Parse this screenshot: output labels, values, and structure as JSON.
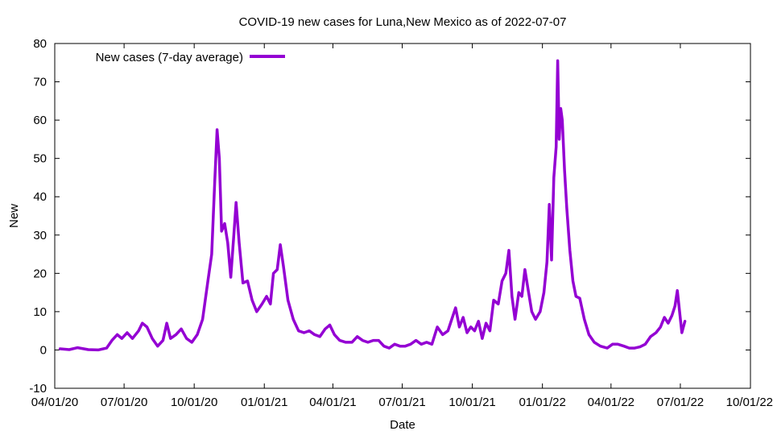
{
  "chart_data": {
    "type": "line",
    "title": "COVID-19 new cases for Luna,New Mexico as of 2022-07-07",
    "xlabel": "Date",
    "ylabel": "New",
    "xlim": [
      "2020-04-01",
      "2022-10-01"
    ],
    "ylim": [
      -10,
      80
    ],
    "grid": false,
    "legend_position": "top-left",
    "x_ticks": [
      "2020-04-01",
      "2020-07-01",
      "2020-10-01",
      "2021-01-01",
      "2021-04-01",
      "2021-07-01",
      "2021-10-01",
      "2022-01-01",
      "2022-04-01",
      "2022-07-01",
      "2022-10-01"
    ],
    "x_tick_labels": [
      "04/01/20",
      "07/01/20",
      "10/01/20",
      "01/01/21",
      "04/01/21",
      "07/01/21",
      "10/01/21",
      "01/01/22",
      "04/01/22",
      "07/01/22",
      "10/01/22"
    ],
    "y_ticks": [
      -10,
      0,
      10,
      20,
      30,
      40,
      50,
      60,
      70,
      80
    ],
    "y_tick_labels": [
      "-10",
      "0",
      "10",
      "20",
      "30",
      "40",
      "50",
      "60",
      "70",
      "80"
    ],
    "series": [
      {
        "name": "New cases (7-day average)",
        "color": "#9400d3",
        "points": [
          [
            "2020-04-08",
            0.3
          ],
          [
            "2020-04-20",
            0.1
          ],
          [
            "2020-05-01",
            0.6
          ],
          [
            "2020-05-15",
            0.1
          ],
          [
            "2020-05-28",
            0.0
          ],
          [
            "2020-06-08",
            0.5
          ],
          [
            "2020-06-15",
            2.5
          ],
          [
            "2020-06-22",
            4.0
          ],
          [
            "2020-06-28",
            3.0
          ],
          [
            "2020-07-05",
            4.5
          ],
          [
            "2020-07-12",
            3.0
          ],
          [
            "2020-07-20",
            5.0
          ],
          [
            "2020-07-25",
            7.0
          ],
          [
            "2020-07-31",
            6.0
          ],
          [
            "2020-08-07",
            3.0
          ],
          [
            "2020-08-14",
            1.0
          ],
          [
            "2020-08-21",
            2.5
          ],
          [
            "2020-08-26",
            7.0
          ],
          [
            "2020-08-31",
            3.0
          ],
          [
            "2020-09-07",
            4.0
          ],
          [
            "2020-09-14",
            5.5
          ],
          [
            "2020-09-21",
            3.0
          ],
          [
            "2020-09-28",
            2.0
          ],
          [
            "2020-10-05",
            4.0
          ],
          [
            "2020-10-12",
            8.0
          ],
          [
            "2020-10-19",
            18.0
          ],
          [
            "2020-10-24",
            25.0
          ],
          [
            "2020-10-28",
            44.0
          ],
          [
            "2020-10-31",
            57.5
          ],
          [
            "2020-11-03",
            50.0
          ],
          [
            "2020-11-06",
            31.0
          ],
          [
            "2020-11-10",
            33.0
          ],
          [
            "2020-11-14",
            28.0
          ],
          [
            "2020-11-18",
            19.0
          ],
          [
            "2020-11-22",
            30.0
          ],
          [
            "2020-11-25",
            38.5
          ],
          [
            "2020-11-29",
            28.0
          ],
          [
            "2020-12-04",
            17.5
          ],
          [
            "2020-12-10",
            18.0
          ],
          [
            "2020-12-16",
            13.0
          ],
          [
            "2020-12-22",
            10.0
          ],
          [
            "2020-12-29",
            12.0
          ],
          [
            "2021-01-04",
            14.0
          ],
          [
            "2021-01-09",
            12.0
          ],
          [
            "2021-01-13",
            20.0
          ],
          [
            "2021-01-18",
            21.0
          ],
          [
            "2021-01-22",
            27.5
          ],
          [
            "2021-01-26",
            22.0
          ],
          [
            "2021-02-01",
            13.0
          ],
          [
            "2021-02-08",
            8.0
          ],
          [
            "2021-02-15",
            5.0
          ],
          [
            "2021-02-22",
            4.5
          ],
          [
            "2021-03-01",
            5.0
          ],
          [
            "2021-03-08",
            4.0
          ],
          [
            "2021-03-15",
            3.5
          ],
          [
            "2021-03-22",
            5.5
          ],
          [
            "2021-03-28",
            6.5
          ],
          [
            "2021-04-03",
            4.0
          ],
          [
            "2021-04-10",
            2.5
          ],
          [
            "2021-04-18",
            2.0
          ],
          [
            "2021-04-26",
            2.0
          ],
          [
            "2021-05-03",
            3.5
          ],
          [
            "2021-05-10",
            2.5
          ],
          [
            "2021-05-17",
            2.0
          ],
          [
            "2021-05-24",
            2.5
          ],
          [
            "2021-05-31",
            2.5
          ],
          [
            "2021-06-07",
            1.0
          ],
          [
            "2021-06-14",
            0.5
          ],
          [
            "2021-06-21",
            1.5
          ],
          [
            "2021-06-28",
            1.0
          ],
          [
            "2021-07-05",
            1.0
          ],
          [
            "2021-07-12",
            1.5
          ],
          [
            "2021-07-19",
            2.5
          ],
          [
            "2021-07-26",
            1.5
          ],
          [
            "2021-08-02",
            2.0
          ],
          [
            "2021-08-09",
            1.5
          ],
          [
            "2021-08-16",
            6.0
          ],
          [
            "2021-08-23",
            4.0
          ],
          [
            "2021-08-30",
            5.0
          ],
          [
            "2021-09-04",
            8.0
          ],
          [
            "2021-09-09",
            11.0
          ],
          [
            "2021-09-14",
            6.0
          ],
          [
            "2021-09-19",
            8.5
          ],
          [
            "2021-09-24",
            4.5
          ],
          [
            "2021-09-29",
            6.0
          ],
          [
            "2021-10-04",
            5.0
          ],
          [
            "2021-10-09",
            7.5
          ],
          [
            "2021-10-14",
            3.0
          ],
          [
            "2021-10-19",
            7.0
          ],
          [
            "2021-10-24",
            5.0
          ],
          [
            "2021-10-29",
            13.0
          ],
          [
            "2021-11-04",
            12.0
          ],
          [
            "2021-11-09",
            18.0
          ],
          [
            "2021-11-14",
            20.0
          ],
          [
            "2021-11-18",
            26.0
          ],
          [
            "2021-11-22",
            14.0
          ],
          [
            "2021-11-26",
            8.0
          ],
          [
            "2021-12-01",
            15.0
          ],
          [
            "2021-12-05",
            14.0
          ],
          [
            "2021-12-09",
            21.0
          ],
          [
            "2021-12-13",
            16.0
          ],
          [
            "2021-12-18",
            10.0
          ],
          [
            "2021-12-23",
            8.0
          ],
          [
            "2021-12-29",
            10.0
          ],
          [
            "2022-01-03",
            15.0
          ],
          [
            "2022-01-07",
            23.0
          ],
          [
            "2022-01-10",
            38.0
          ],
          [
            "2022-01-13",
            23.5
          ],
          [
            "2022-01-16",
            45.0
          ],
          [
            "2022-01-19",
            53.0
          ],
          [
            "2022-01-21",
            75.5
          ],
          [
            "2022-01-23",
            55.0
          ],
          [
            "2022-01-25",
            63.0
          ],
          [
            "2022-01-27",
            60.0
          ],
          [
            "2022-01-30",
            47.0
          ],
          [
            "2022-02-02",
            37.0
          ],
          [
            "2022-02-06",
            26.0
          ],
          [
            "2022-02-10",
            18.0
          ],
          [
            "2022-02-14",
            14.0
          ],
          [
            "2022-02-19",
            13.5
          ],
          [
            "2022-02-25",
            8.0
          ],
          [
            "2022-03-03",
            4.0
          ],
          [
            "2022-03-10",
            2.0
          ],
          [
            "2022-03-18",
            1.0
          ],
          [
            "2022-03-27",
            0.5
          ],
          [
            "2022-04-03",
            1.5
          ],
          [
            "2022-04-10",
            1.5
          ],
          [
            "2022-04-18",
            1.0
          ],
          [
            "2022-04-25",
            0.5
          ],
          [
            "2022-05-02",
            0.5
          ],
          [
            "2022-05-09",
            0.8
          ],
          [
            "2022-05-16",
            1.5
          ],
          [
            "2022-05-23",
            3.5
          ],
          [
            "2022-05-30",
            4.5
          ],
          [
            "2022-06-05",
            6.0
          ],
          [
            "2022-06-10",
            8.5
          ],
          [
            "2022-06-15",
            7.0
          ],
          [
            "2022-06-20",
            9.0
          ],
          [
            "2022-06-24",
            11.5
          ],
          [
            "2022-06-27",
            15.5
          ],
          [
            "2022-06-30",
            10.0
          ],
          [
            "2022-07-03",
            4.5
          ],
          [
            "2022-07-07",
            7.5
          ]
        ]
      }
    ]
  }
}
